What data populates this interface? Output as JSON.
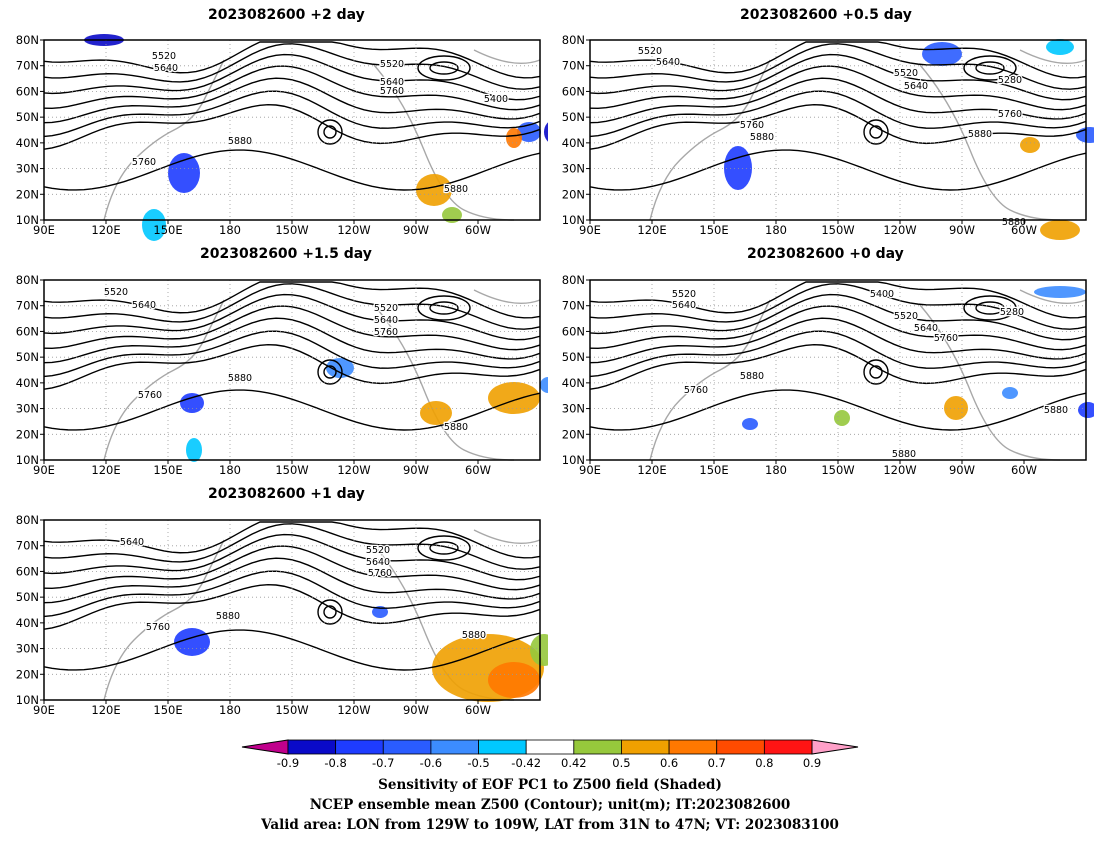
{
  "panels": [
    {
      "title": "2023082600  +2  day"
    },
    {
      "title": "2023082600  +0.5  day"
    },
    {
      "title": "2023082600  +1.5  day"
    },
    {
      "title": "2023082600  +0  day"
    },
    {
      "title": "2023082600  +1  day"
    }
  ],
  "axes": {
    "lon_labels": [
      "90E",
      "120E",
      "150E",
      "180",
      "150W",
      "120W",
      "90W",
      "60W"
    ],
    "lat_labels": [
      "10N",
      "20N",
      "30N",
      "40N",
      "50N",
      "60N",
      "70N",
      "80N"
    ]
  },
  "contour_labels": {
    "p0": [
      "5520",
      "5640",
      "5520",
      "5640",
      "5760",
      "5400",
      "5880",
      "5760",
      "5880"
    ],
    "p1": [
      "5520",
      "5640",
      "5520",
      "5640",
      "5280",
      "5760",
      "5760",
      "5880",
      "5880",
      "5880"
    ],
    "p2": [
      "5520",
      "5640",
      "5520",
      "5640",
      "5760",
      "5880",
      "5760",
      "5880"
    ],
    "p3": [
      "5520",
      "5640",
      "5400",
      "5520",
      "5280",
      "5640",
      "5760",
      "5880",
      "5760",
      "5880",
      "5880"
    ],
    "p4": [
      "5640",
      "5520",
      "5640",
      "5760",
      "5880",
      "5760",
      "5880"
    ]
  },
  "colorbar": {
    "ticks": [
      "-0.9",
      "-0.8",
      "-0.7",
      "-0.6",
      "-0.5",
      "-0.42",
      "0.42",
      "0.5",
      "0.6",
      "0.7",
      "0.8",
      "0.9"
    ],
    "colors": [
      "#c0008c",
      "#0a0ac8",
      "#1e3cff",
      "#2a5cff",
      "#3c8cff",
      "#00c8ff",
      "#ffffff",
      "#96c83c",
      "#f0a000",
      "#ff7800",
      "#ff4b00",
      "#ff1414",
      "#ffa0c8"
    ]
  },
  "footer": {
    "line1": "Sensitivity of EOF PC1 to Z500 field (Shaded)",
    "line2": "NCEP ensemble mean Z500 (Contour); unit(m); IT:2023082600",
    "line3": "Valid area: LON from 129W to 109W, LAT from 31N to 47N; VT: 2023083100"
  }
}
